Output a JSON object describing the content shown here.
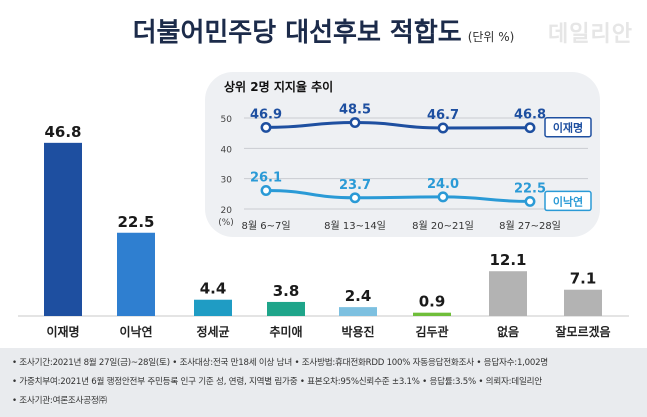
{
  "title": "더불어민주당 대선후보 적합도",
  "unit": "(단위 %)",
  "logo": "데일리안",
  "chart_data": [
    {
      "type": "bar",
      "categories": [
        "이재명",
        "이낙연",
        "정세균",
        "추미애",
        "박용진",
        "김두관",
        "없음",
        "잘모르겠음"
      ],
      "values": [
        46.8,
        22.5,
        4.4,
        3.8,
        2.4,
        0.9,
        12.1,
        7.1
      ],
      "value_labels": [
        "46.8",
        "22.5",
        "4.4",
        "3.8",
        "2.4",
        "0.9",
        "12.1",
        "7.1"
      ],
      "colors": [
        "#1e4fa0",
        "#2f7fd0",
        "#1f9cc4",
        "#1fa58a",
        "#7dc0e0",
        "#6fbe3a",
        "#b3b3b3",
        "#b3b3b3"
      ]
    },
    {
      "type": "line",
      "title": "상위 2명 지지율 추이",
      "ylabel": "(%)",
      "y_ticks": [
        "50",
        "40",
        "30",
        "20"
      ],
      "ylim": [
        20,
        50
      ],
      "x": [
        "8월 6~7일",
        "8월 13~14일",
        "8월 20~21일",
        "8월 27~28일"
      ],
      "series": [
        {
          "name": "이재명",
          "values": [
            46.9,
            48.5,
            46.7,
            46.8
          ],
          "labels": [
            "46.9",
            "48.5",
            "46.7",
            "46.8"
          ],
          "color": "#1e4fa0"
        },
        {
          "name": "이낙연",
          "values": [
            26.1,
            23.7,
            24.0,
            22.5
          ],
          "labels": [
            "26.1",
            "23.7",
            "24.0",
            "22.5"
          ],
          "color": "#2a9ad6"
        }
      ]
    }
  ],
  "footnotes": [
    "• 조사기간:2021년 8월 27일(금)~28일(토)  • 조사대상:전국 만18세 이상 남녀  • 조사방법:휴대전화RDD 100% 자동응답전화조사  • 응답자수:1,002명",
    "• 가중치부여:2021년 6월 행정안전부 주민등록 인구 기준 성, 연령, 지역별 림가중  • 표본오차:95%신뢰수준 ±3.1%  • 응답률:3.5%  • 의뢰자:데일리안",
    "• 조사기관:여론조사공정㈜"
  ]
}
